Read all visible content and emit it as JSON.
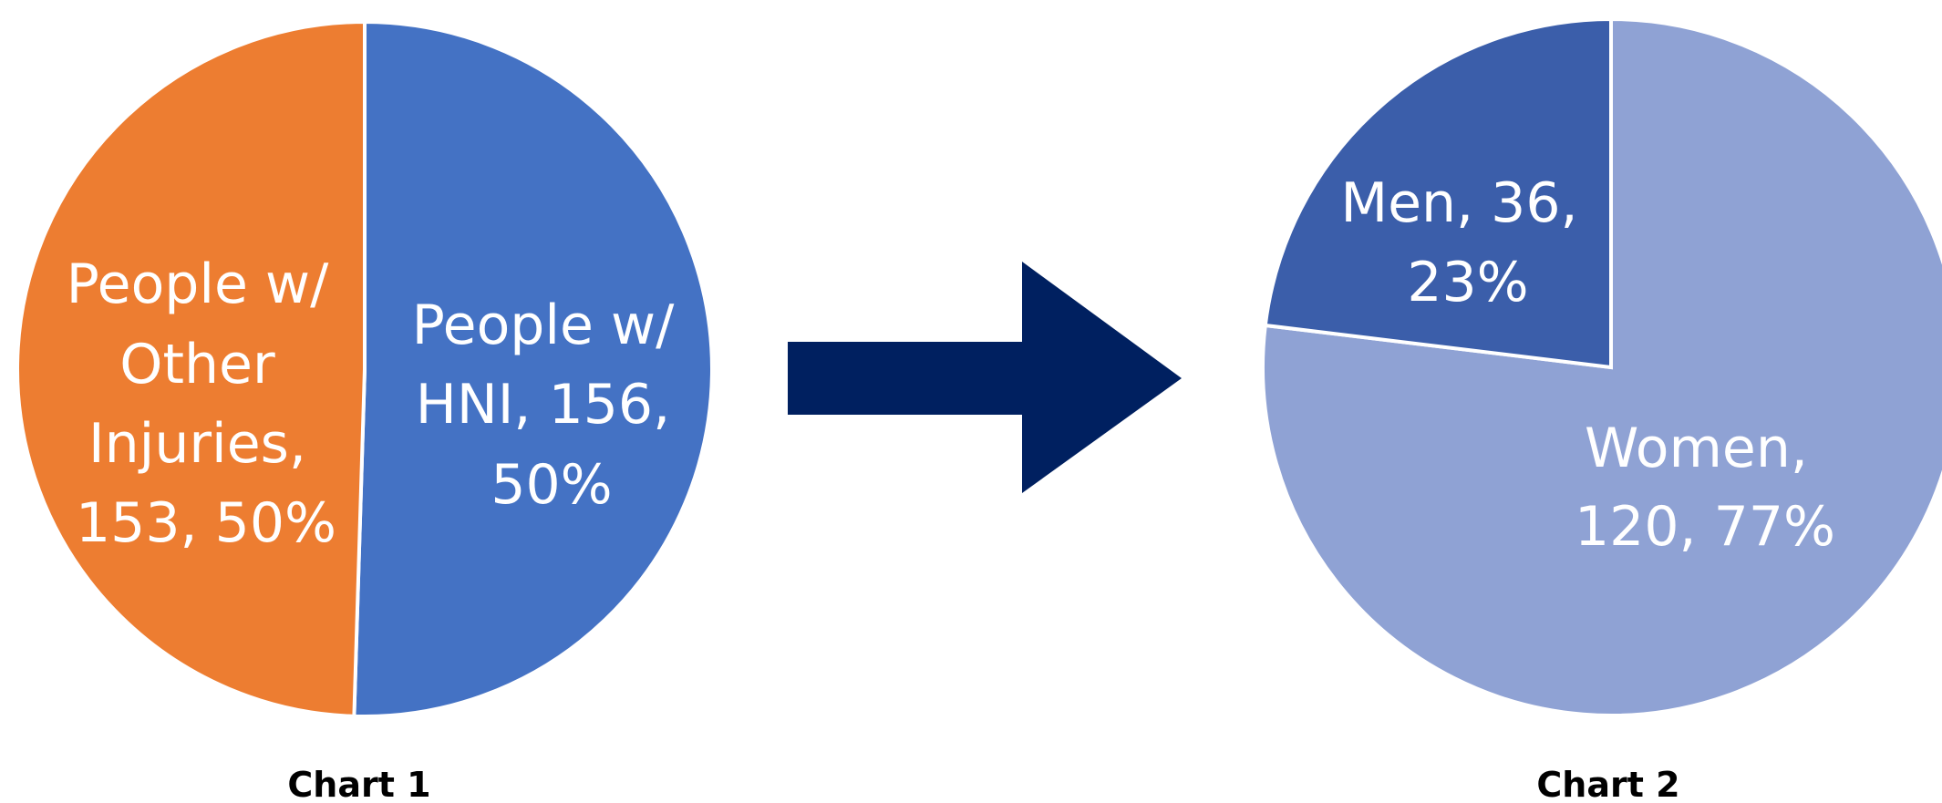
{
  "chart_data": [
    {
      "type": "pie",
      "caption": "Chart 1",
      "slices": [
        {
          "name": "People w/ HNI",
          "value": 156,
          "percent": "50%",
          "color": "#4472C4",
          "label_lines": [
            "People w/",
            "HNI, 156,",
            "50%"
          ]
        },
        {
          "name": "People w/ Other Injuries",
          "value": 153,
          "percent": "50%",
          "color": "#ED7D31",
          "label_lines": [
            "People w/",
            "Other",
            "Injuries,",
            "153, 50%"
          ]
        }
      ]
    },
    {
      "type": "pie",
      "caption": "Chart 2",
      "slices": [
        {
          "name": "Women",
          "value": 120,
          "percent": "77%",
          "color": "#8FA2D4",
          "label_lines": [
            "Women,",
            "120, 77%"
          ]
        },
        {
          "name": "Men",
          "value": 36,
          "percent": "23%",
          "color": "#3B5EAA",
          "label_lines": [
            "Men, 36,",
            "23%"
          ]
        }
      ]
    }
  ],
  "arrow": {
    "icon": "right-arrow-icon",
    "color": "#002060"
  }
}
